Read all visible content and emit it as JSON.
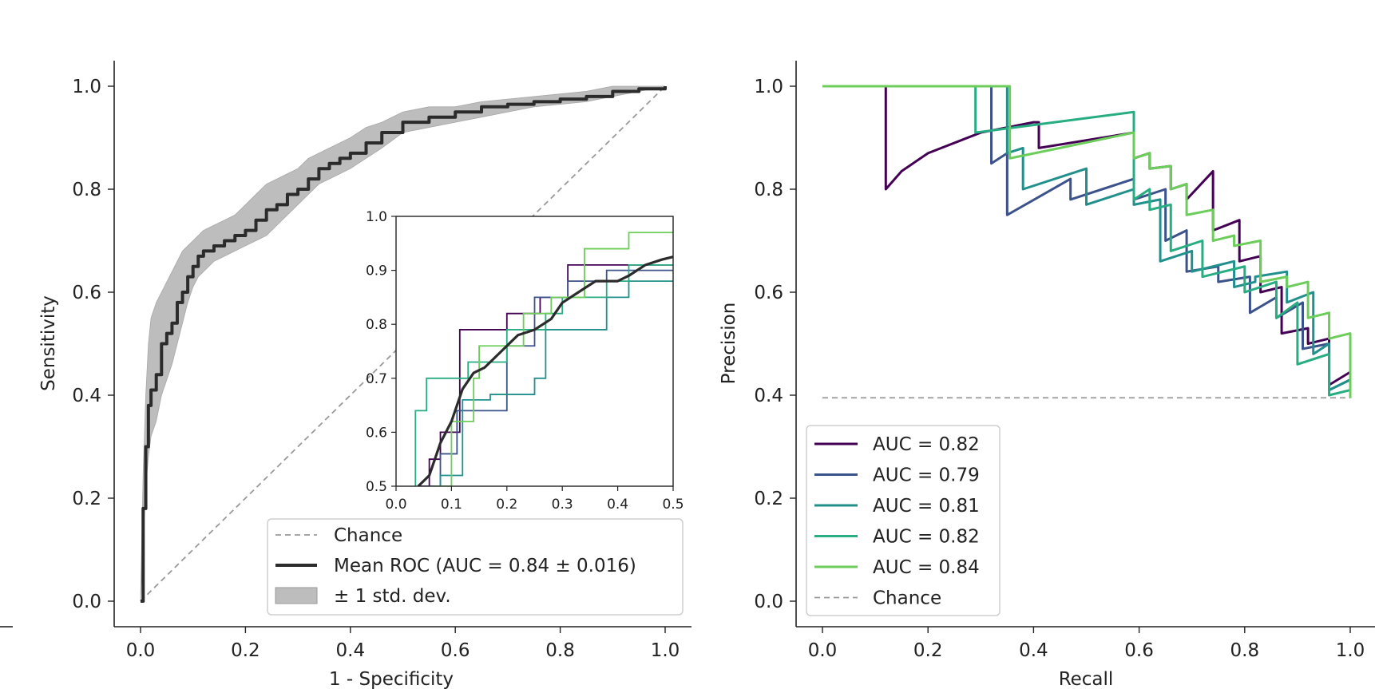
{
  "colors": {
    "mean": "#2b2b2b",
    "band": "#bdbdbd",
    "chance": "#999999",
    "folds": [
      "#440154",
      "#3b528b",
      "#21908d",
      "#27ad81",
      "#6ccd5a"
    ],
    "legend_border": "#cfcfcf"
  },
  "chart_data": [
    {
      "type": "line",
      "title": "",
      "xlabel": "1 - Specificity",
      "ylabel": "Sensitivity",
      "xlim": [
        0,
        1
      ],
      "ylim": [
        0,
        1
      ],
      "xticks": [
        "0.0",
        "0.2",
        "0.4",
        "0.6",
        "0.8",
        "1.0"
      ],
      "yticks": [
        "0.0",
        "0.2",
        "0.4",
        "0.6",
        "0.8",
        "1.0"
      ],
      "chance": {
        "x": [
          0,
          1
        ],
        "y": [
          0,
          1
        ]
      },
      "mean_roc": {
        "x": [
          0,
          0.005,
          0.01,
          0.015,
          0.02,
          0.03,
          0.04,
          0.05,
          0.06,
          0.07,
          0.08,
          0.09,
          0.1,
          0.11,
          0.12,
          0.14,
          0.16,
          0.18,
          0.2,
          0.22,
          0.24,
          0.26,
          0.28,
          0.3,
          0.32,
          0.34,
          0.36,
          0.38,
          0.4,
          0.43,
          0.46,
          0.5,
          0.55,
          0.6,
          0.65,
          0.7,
          0.75,
          0.8,
          0.85,
          0.9,
          0.95,
          1.0
        ],
        "y": [
          0,
          0.18,
          0.3,
          0.38,
          0.41,
          0.44,
          0.5,
          0.52,
          0.54,
          0.58,
          0.6,
          0.63,
          0.65,
          0.67,
          0.68,
          0.69,
          0.7,
          0.71,
          0.72,
          0.74,
          0.76,
          0.77,
          0.79,
          0.8,
          0.82,
          0.84,
          0.85,
          0.86,
          0.87,
          0.89,
          0.91,
          0.93,
          0.94,
          0.95,
          0.96,
          0.965,
          0.97,
          0.975,
          0.98,
          0.99,
          0.995,
          1.0
        ]
      },
      "band_upper": [
        0,
        0.25,
        0.4,
        0.5,
        0.55,
        0.58,
        0.6,
        0.62,
        0.64,
        0.66,
        0.68,
        0.69,
        0.7,
        0.71,
        0.72,
        0.73,
        0.74,
        0.75,
        0.77,
        0.79,
        0.81,
        0.82,
        0.83,
        0.84,
        0.86,
        0.87,
        0.88,
        0.89,
        0.9,
        0.92,
        0.93,
        0.95,
        0.96,
        0.96,
        0.97,
        0.975,
        0.98,
        0.985,
        0.99,
        1.0,
        1.0,
        1.0
      ],
      "band_lower": [
        0,
        0.12,
        0.22,
        0.28,
        0.32,
        0.35,
        0.4,
        0.43,
        0.46,
        0.5,
        0.54,
        0.58,
        0.61,
        0.63,
        0.64,
        0.66,
        0.67,
        0.68,
        0.69,
        0.7,
        0.71,
        0.73,
        0.75,
        0.77,
        0.79,
        0.81,
        0.82,
        0.83,
        0.84,
        0.86,
        0.88,
        0.91,
        0.92,
        0.93,
        0.94,
        0.95,
        0.96,
        0.965,
        0.97,
        0.98,
        0.99,
        1.0
      ],
      "legend": {
        "position": "lower-right",
        "entries": [
          "Chance",
          "Mean ROC (AUC = 0.84 ± 0.016)",
          "± 1 std. dev."
        ]
      },
      "inset": {
        "xlim": [
          0,
          0.5
        ],
        "ylim": [
          0.5,
          1.0
        ],
        "xticks": [
          "0.0",
          "0.1",
          "0.2",
          "0.3",
          "0.4",
          "0.5"
        ],
        "yticks": [
          "0.5",
          "0.6",
          "0.7",
          "0.8",
          "0.9",
          "1.0"
        ],
        "folds": [
          {
            "x": [
              0.04,
              0.06,
              0.06,
              0.08,
              0.08,
              0.115,
              0.115,
              0.2,
              0.2,
              0.26,
              0.26,
              0.31,
              0.31,
              0.5
            ],
            "y": [
              0.5,
              0.5,
              0.55,
              0.55,
              0.6,
              0.6,
              0.79,
              0.79,
              0.82,
              0.82,
              0.85,
              0.85,
              0.91,
              0.91
            ]
          },
          {
            "x": [
              0.05,
              0.08,
              0.08,
              0.11,
              0.11,
              0.2,
              0.2,
              0.25,
              0.25,
              0.31,
              0.31,
              0.38,
              0.38,
              0.5
            ],
            "y": [
              0.5,
              0.5,
              0.56,
              0.56,
              0.64,
              0.64,
              0.76,
              0.76,
              0.85,
              0.85,
              0.88,
              0.88,
              0.9,
              0.9
            ]
          },
          {
            "x": [
              0.08,
              0.08,
              0.12,
              0.12,
              0.17,
              0.17,
              0.25,
              0.25,
              0.27,
              0.27,
              0.38,
              0.38,
              0.42,
              0.42,
              0.5
            ],
            "y": [
              0.5,
              0.52,
              0.52,
              0.66,
              0.66,
              0.67,
              0.67,
              0.7,
              0.7,
              0.79,
              0.79,
              0.85,
              0.85,
              0.88,
              0.88
            ]
          },
          {
            "x": [
              0.035,
              0.035,
              0.055,
              0.055,
              0.13,
              0.13,
              0.2,
              0.2,
              0.27,
              0.27,
              0.3,
              0.3,
              0.38,
              0.38,
              0.42,
              0.42,
              0.5
            ],
            "y": [
              0.5,
              0.64,
              0.64,
              0.7,
              0.7,
              0.73,
              0.73,
              0.79,
              0.79,
              0.82,
              0.82,
              0.85,
              0.85,
              0.88,
              0.88,
              0.91,
              0.91
            ]
          },
          {
            "x": [
              0.07,
              0.1,
              0.1,
              0.14,
              0.14,
              0.15,
              0.15,
              0.23,
              0.23,
              0.28,
              0.28,
              0.34,
              0.34,
              0.42,
              0.42,
              0.5
            ],
            "y": [
              0.5,
              0.5,
              0.62,
              0.62,
              0.7,
              0.7,
              0.76,
              0.76,
              0.82,
              0.82,
              0.85,
              0.85,
              0.94,
              0.94,
              0.97,
              0.97
            ]
          }
        ],
        "mean": {
          "x": [
            0.04,
            0.06,
            0.08,
            0.09,
            0.1,
            0.11,
            0.12,
            0.14,
            0.16,
            0.18,
            0.2,
            0.22,
            0.25,
            0.28,
            0.3,
            0.33,
            0.36,
            0.4,
            0.42,
            0.45,
            0.48,
            0.5
          ],
          "y": [
            0.5,
            0.52,
            0.58,
            0.6,
            0.62,
            0.65,
            0.68,
            0.71,
            0.72,
            0.74,
            0.76,
            0.78,
            0.79,
            0.81,
            0.84,
            0.86,
            0.88,
            0.88,
            0.89,
            0.91,
            0.92,
            0.925
          ]
        }
      }
    },
    {
      "type": "line",
      "title": "",
      "xlabel": "Recall",
      "ylabel": "Precision",
      "xlim": [
        0,
        1
      ],
      "ylim": [
        0,
        1
      ],
      "xticks": [
        "0.0",
        "0.2",
        "0.4",
        "0.6",
        "0.8",
        "1.0"
      ],
      "yticks": [
        "0.0",
        "0.2",
        "0.4",
        "0.6",
        "0.8",
        "1.0"
      ],
      "chance_level": 0.395,
      "series": [
        {
          "name": "AUC = 0.82",
          "points": [
            [
              0,
              1.0
            ],
            [
              0.12,
              1.0
            ],
            [
              0.12,
              0.8
            ],
            [
              0.15,
              0.835
            ],
            [
              0.2,
              0.87
            ],
            [
              0.3,
              0.91
            ],
            [
              0.4,
              0.93
            ],
            [
              0.41,
              0.93
            ],
            [
              0.41,
              0.88
            ],
            [
              0.59,
              0.91
            ],
            [
              0.59,
              0.86
            ],
            [
              0.62,
              0.87
            ],
            [
              0.62,
              0.84
            ],
            [
              0.66,
              0.845
            ],
            [
              0.66,
              0.8
            ],
            [
              0.69,
              0.81
            ],
            [
              0.69,
              0.78
            ],
            [
              0.74,
              0.835
            ],
            [
              0.74,
              0.72
            ],
            [
              0.79,
              0.74
            ],
            [
              0.79,
              0.66
            ],
            [
              0.83,
              0.67
            ],
            [
              0.83,
              0.6
            ],
            [
              0.87,
              0.61
            ],
            [
              0.87,
              0.52
            ],
            [
              0.92,
              0.53
            ],
            [
              0.92,
              0.5
            ],
            [
              0.96,
              0.51
            ],
            [
              0.96,
              0.42
            ],
            [
              1.0,
              0.445
            ],
            [
              1.0,
              0.395
            ]
          ]
        },
        {
          "name": "AUC = 0.79",
          "points": [
            [
              0,
              1.0
            ],
            [
              0.32,
              1.0
            ],
            [
              0.32,
              0.85
            ],
            [
              0.35,
              0.87
            ],
            [
              0.35,
              0.75
            ],
            [
              0.47,
              0.82
            ],
            [
              0.47,
              0.78
            ],
            [
              0.59,
              0.82
            ],
            [
              0.59,
              0.78
            ],
            [
              0.65,
              0.8
            ],
            [
              0.65,
              0.7
            ],
            [
              0.69,
              0.72
            ],
            [
              0.69,
              0.64
            ],
            [
              0.75,
              0.65
            ],
            [
              0.75,
              0.62
            ],
            [
              0.81,
              0.63
            ],
            [
              0.81,
              0.56
            ],
            [
              0.86,
              0.59
            ],
            [
              0.86,
              0.55
            ],
            [
              0.91,
              0.58
            ],
            [
              0.91,
              0.49
            ],
            [
              0.96,
              0.5
            ],
            [
              0.96,
              0.41
            ],
            [
              1.0,
              0.43
            ],
            [
              1.0,
              0.395
            ]
          ]
        },
        {
          "name": "AUC = 0.81",
          "points": [
            [
              0,
              1.0
            ],
            [
              0.35,
              1.0
            ],
            [
              0.35,
              0.87
            ],
            [
              0.38,
              0.88
            ],
            [
              0.38,
              0.8
            ],
            [
              0.5,
              0.84
            ],
            [
              0.5,
              0.77
            ],
            [
              0.59,
              0.8
            ],
            [
              0.59,
              0.77
            ],
            [
              0.64,
              0.78
            ],
            [
              0.64,
              0.66
            ],
            [
              0.7,
              0.68
            ],
            [
              0.7,
              0.64
            ],
            [
              0.78,
              0.66
            ],
            [
              0.78,
              0.61
            ],
            [
              0.82,
              0.62
            ],
            [
              0.82,
              0.63
            ],
            [
              0.88,
              0.64
            ],
            [
              0.88,
              0.58
            ],
            [
              0.93,
              0.6
            ],
            [
              0.93,
              0.48
            ],
            [
              0.96,
              0.5
            ],
            [
              0.96,
              0.41
            ],
            [
              1.0,
              0.43
            ],
            [
              1.0,
              0.395
            ]
          ]
        },
        {
          "name": "AUC = 0.82",
          "points": [
            [
              0,
              1.0
            ],
            [
              0.29,
              1.0
            ],
            [
              0.29,
              0.91
            ],
            [
              0.44,
              0.93
            ],
            [
              0.59,
              0.95
            ],
            [
              0.59,
              0.78
            ],
            [
              0.62,
              0.8
            ],
            [
              0.62,
              0.76
            ],
            [
              0.66,
              0.77
            ],
            [
              0.66,
              0.68
            ],
            [
              0.72,
              0.7
            ],
            [
              0.72,
              0.63
            ],
            [
              0.8,
              0.65
            ],
            [
              0.8,
              0.6
            ],
            [
              0.86,
              0.62
            ],
            [
              0.86,
              0.55
            ],
            [
              0.9,
              0.58
            ],
            [
              0.9,
              0.46
            ],
            [
              0.96,
              0.48
            ],
            [
              0.96,
              0.4
            ],
            [
              1.0,
              0.41
            ],
            [
              1.0,
              0.395
            ]
          ]
        },
        {
          "name": "AUC = 0.84",
          "points": [
            [
              0,
              1.0
            ],
            [
              0.355,
              1.0
            ],
            [
              0.355,
              0.86
            ],
            [
              0.45,
              0.88
            ],
            [
              0.59,
              0.91
            ],
            [
              0.59,
              0.86
            ],
            [
              0.62,
              0.87
            ],
            [
              0.62,
              0.84
            ],
            [
              0.66,
              0.845
            ],
            [
              0.66,
              0.8
            ],
            [
              0.69,
              0.81
            ],
            [
              0.69,
              0.75
            ],
            [
              0.74,
              0.76
            ],
            [
              0.74,
              0.7
            ],
            [
              0.78,
              0.71
            ],
            [
              0.78,
              0.69
            ],
            [
              0.83,
              0.7
            ],
            [
              0.83,
              0.62
            ],
            [
              0.88,
              0.63
            ],
            [
              0.88,
              0.61
            ],
            [
              0.92,
              0.62
            ],
            [
              0.92,
              0.55
            ],
            [
              0.96,
              0.56
            ],
            [
              0.96,
              0.51
            ],
            [
              1.0,
              0.52
            ],
            [
              1.0,
              0.395
            ]
          ]
        }
      ],
      "legend": {
        "position": "lower-left",
        "entries": [
          "AUC = 0.82",
          "AUC = 0.79",
          "AUC = 0.81",
          "AUC = 0.82",
          "AUC = 0.84",
          "Chance"
        ]
      }
    }
  ]
}
